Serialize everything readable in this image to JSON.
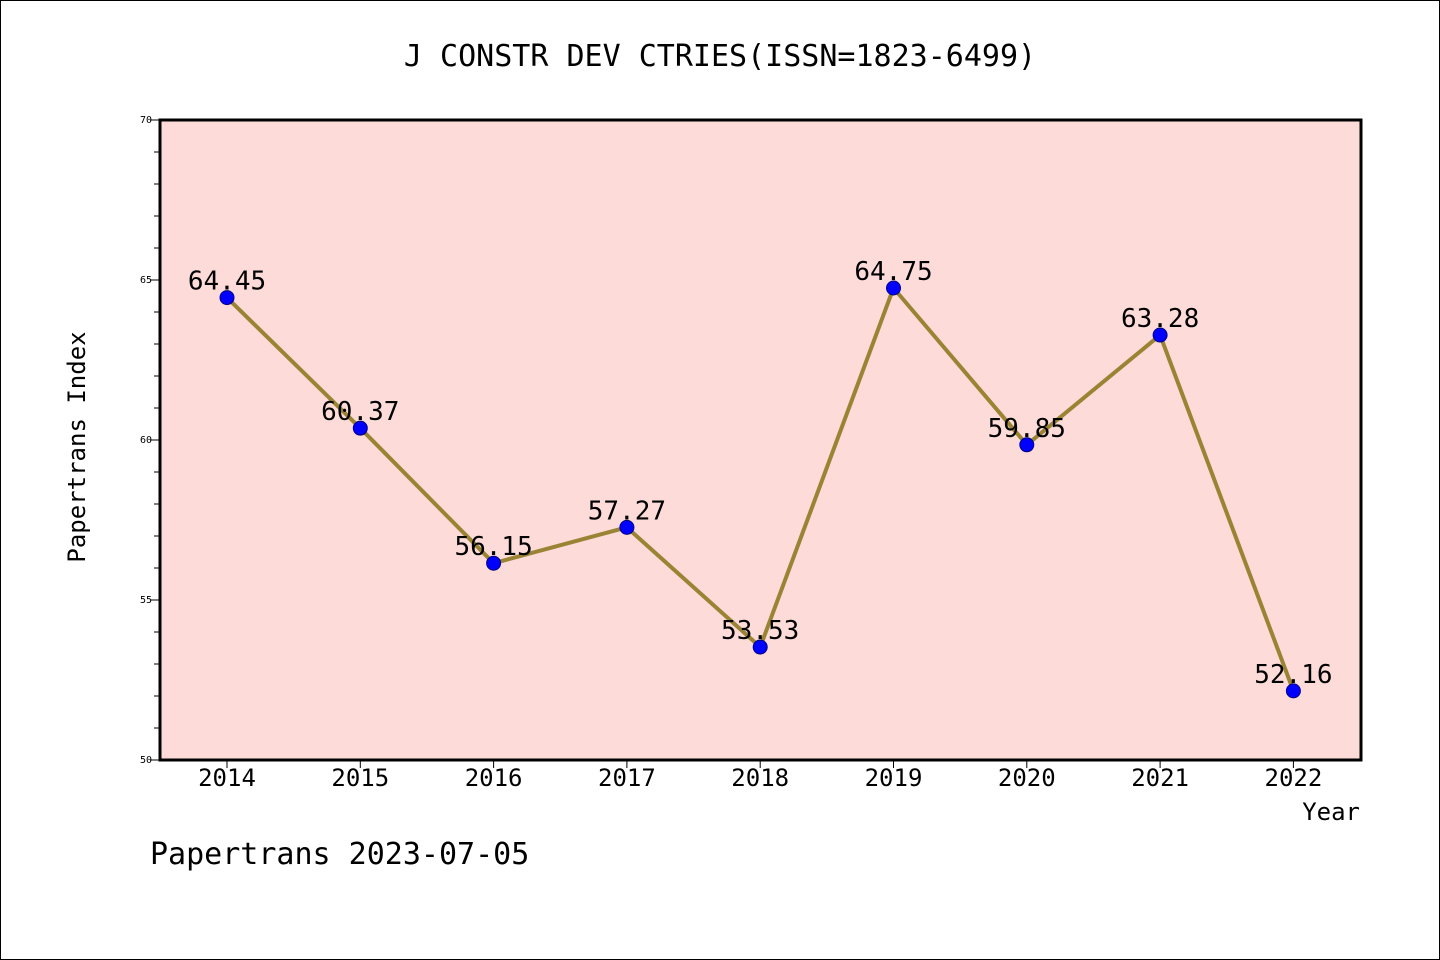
{
  "chart_data": {
    "type": "line",
    "title": "J CONSTR DEV CTRIES(ISSN=1823-6499)",
    "xlabel": "Year",
    "ylabel": "Papertrans Index",
    "categories": [
      "2014",
      "2015",
      "2016",
      "2017",
      "2018",
      "2019",
      "2020",
      "2021",
      "2022"
    ],
    "series": [
      {
        "values": [
          64.45,
          60.37,
          56.15,
          57.27,
          53.53,
          64.75,
          59.85,
          63.28,
          52.16
        ],
        "labels": [
          "64.45",
          "60.37",
          "56.15",
          "57.27",
          "53.53",
          "64.75",
          "59.85",
          "63.28",
          "52.16"
        ]
      }
    ],
    "ylim": [
      50,
      70
    ],
    "yticks": [
      "50",
      "55",
      "60",
      "65",
      "70"
    ],
    "grid": false,
    "legend": "none"
  },
  "footer": {
    "credit": "Papertrans 2023-07-05"
  },
  "colors": {
    "plot_background": "#fddbd9",
    "line": "#9a8434",
    "marker": "#0000ff",
    "axis": "#000000"
  }
}
